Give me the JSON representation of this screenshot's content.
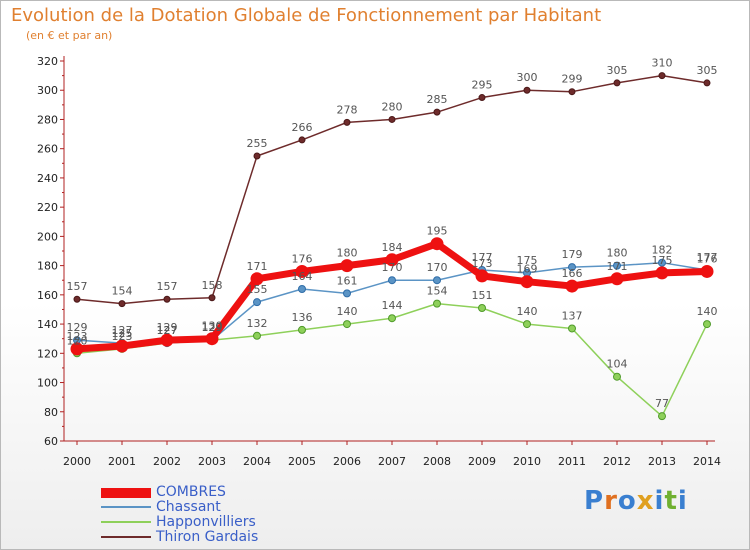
{
  "header": {
    "title": "Evolution de la Dotation Globale de Fonctionnement par Habitant",
    "subtitle": "(en € et par an)"
  },
  "logo": {
    "text": "Proxiti",
    "letters": [
      "P",
      "r",
      "o",
      "x",
      "i",
      "t",
      "i"
    ],
    "colors": [
      "#3a7fd0",
      "#e07020",
      "#3a7fd0",
      "#e0a020",
      "#3a7fd0",
      "#70b030",
      "#3a7fd0"
    ]
  },
  "chart_data": {
    "type": "line",
    "title": "Evolution de la Dotation Globale de Fonctionnement par Habitant",
    "subtitle": "(en € et par an)",
    "xlabel": "",
    "ylabel": "",
    "x": [
      "2000",
      "2001",
      "2002",
      "2003",
      "2004",
      "2005",
      "2006",
      "2007",
      "2008",
      "2009",
      "2010",
      "2011",
      "2012",
      "2013",
      "2014"
    ],
    "ylim": [
      60,
      320
    ],
    "yticks": [
      "60",
      "80",
      "100",
      "120",
      "140",
      "160",
      "180",
      "200",
      "220",
      "240",
      "260",
      "280",
      "300",
      "320"
    ],
    "grid": false,
    "legend_position": "bottom-left",
    "series": [
      {
        "name": "COMBRES",
        "color": "#ee1111",
        "values": [
          123,
          125,
          129,
          130,
          171,
          176,
          180,
          184,
          195,
          173,
          169,
          166,
          171,
          175,
          176
        ],
        "labels": [
          "123",
          "125",
          "129",
          "130",
          "171",
          "176",
          "180",
          "184",
          "195",
          "173",
          "169",
          "166",
          "171",
          "175",
          "176"
        ]
      },
      {
        "name": "Chassant",
        "color": "#5b94c5",
        "values": [
          129,
          127,
          127,
          129,
          155,
          164,
          161,
          170,
          170,
          177,
          175,
          179,
          180,
          182,
          177
        ],
        "labels": [
          "129",
          "127",
          "127",
          "129",
          "155",
          "164",
          "161",
          "170",
          "170",
          "177",
          "175",
          "179",
          "180",
          "182",
          "177"
        ]
      },
      {
        "name": "Happonvilliers",
        "color": "#8ed05a",
        "values": [
          120,
          123,
          127,
          129,
          132,
          136,
          140,
          144,
          154,
          151,
          140,
          137,
          104,
          77,
          140
        ],
        "labels": [
          "120",
          "123",
          "127",
          "129",
          "132",
          "136",
          "140",
          "144",
          "154",
          "151",
          "140",
          "137",
          "104",
          "77",
          "140"
        ]
      },
      {
        "name": "Thiron Gardais",
        "color": "#6e2b2b",
        "values": [
          157,
          154,
          157,
          158,
          255,
          266,
          278,
          280,
          285,
          295,
          300,
          299,
          305,
          310,
          305
        ],
        "labels": [
          "157",
          "154",
          "157",
          "158",
          "255",
          "266",
          "278",
          "280",
          "285",
          "295",
          "300",
          "299",
          "305",
          "310",
          "305"
        ]
      }
    ]
  }
}
